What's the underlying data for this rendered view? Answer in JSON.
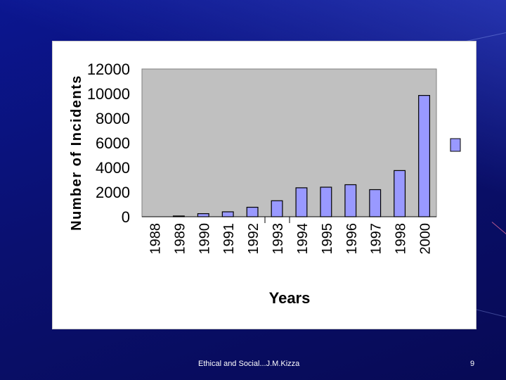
{
  "footer": {
    "text": "Ethical and Social...J.M.Kizza",
    "slide_number": "9"
  },
  "colors": {
    "bar_fill": "#9999ff",
    "plot_background": "#c0c0c0"
  },
  "chart_data": {
    "type": "bar",
    "categories": [
      "1988",
      "1989",
      "1990",
      "1991",
      "1992",
      "1993",
      "1994",
      "1995",
      "1996",
      "1997",
      "1998",
      "2000"
    ],
    "values": [
      0,
      60,
      250,
      400,
      770,
      1300,
      2350,
      2400,
      2600,
      2200,
      3750,
      9850
    ],
    "title": "",
    "xlabel": "Years",
    "ylabel": "Number of Incidents",
    "ylim": [
      0,
      12000
    ],
    "yticks": [
      "12000",
      "10000",
      "8000",
      "6000",
      "4000",
      "2000",
      "0"
    ],
    "grid": false,
    "legend": "right"
  }
}
